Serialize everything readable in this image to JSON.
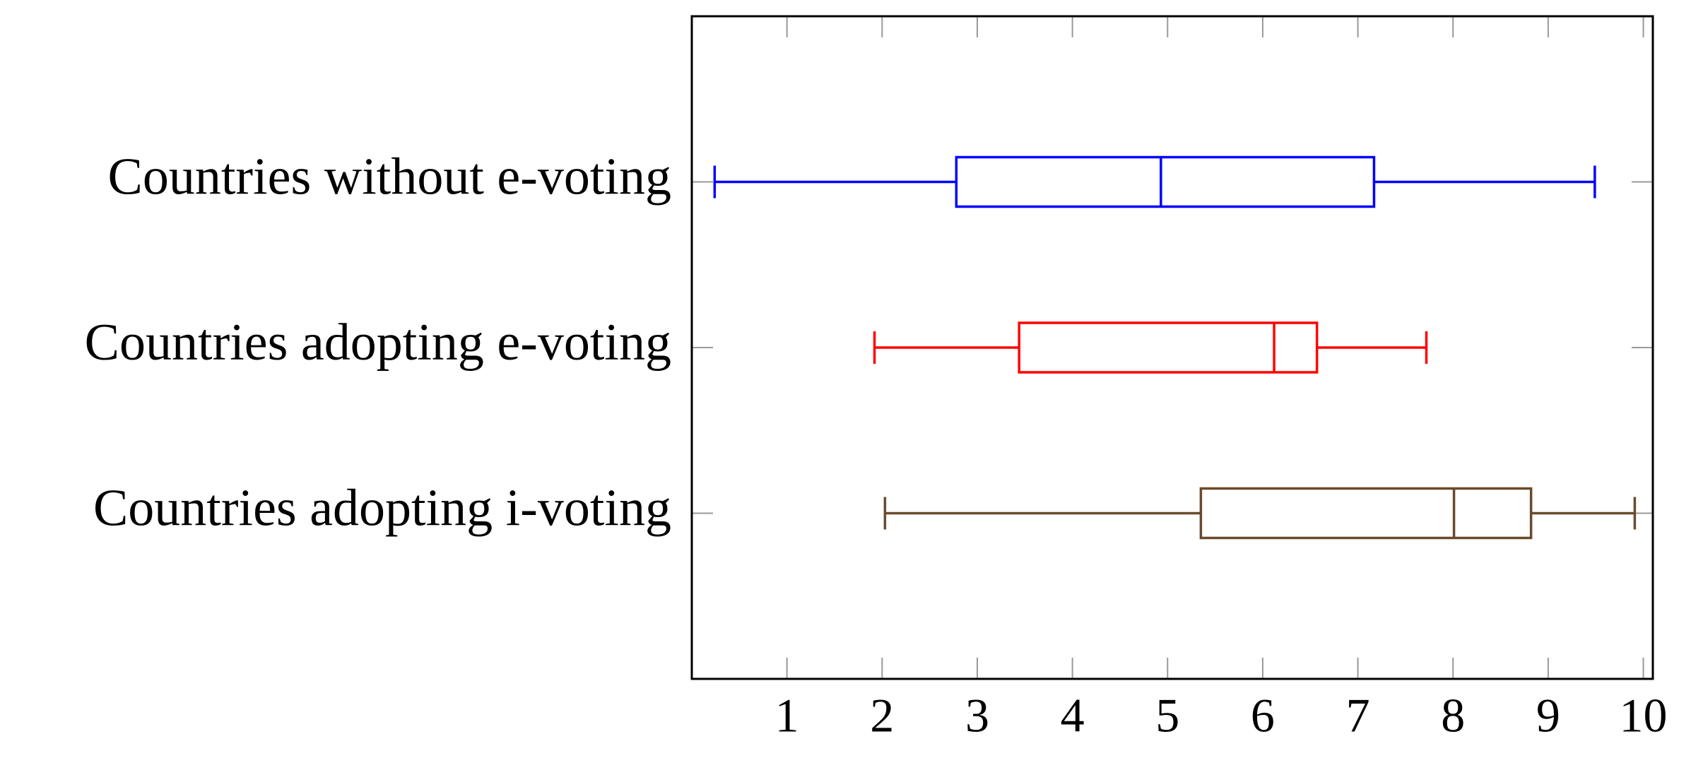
{
  "chart_data": {
    "type": "boxplot",
    "orientation": "horizontal",
    "xlim": [
      0,
      10.1
    ],
    "xticks": [
      1,
      2,
      3,
      4,
      5,
      6,
      7,
      8,
      9,
      10
    ],
    "boxes": [
      {
        "label": "Countries without e-voting",
        "color": "#0000ff",
        "min": 0.24,
        "q1": 2.78,
        "median": 4.93,
        "q3": 7.17,
        "max": 9.49
      },
      {
        "label": "Countries adopting e-voting",
        "color": "#ff0000",
        "min": 1.92,
        "q1": 3.44,
        "median": 6.12,
        "q3": 6.57,
        "max": 7.72
      },
      {
        "label": "Countries adopting i-voting",
        "color": "#6b4a2b",
        "min": 2.03,
        "q1": 5.35,
        "median": 8.01,
        "q3": 8.82,
        "max": 9.91
      }
    ]
  }
}
